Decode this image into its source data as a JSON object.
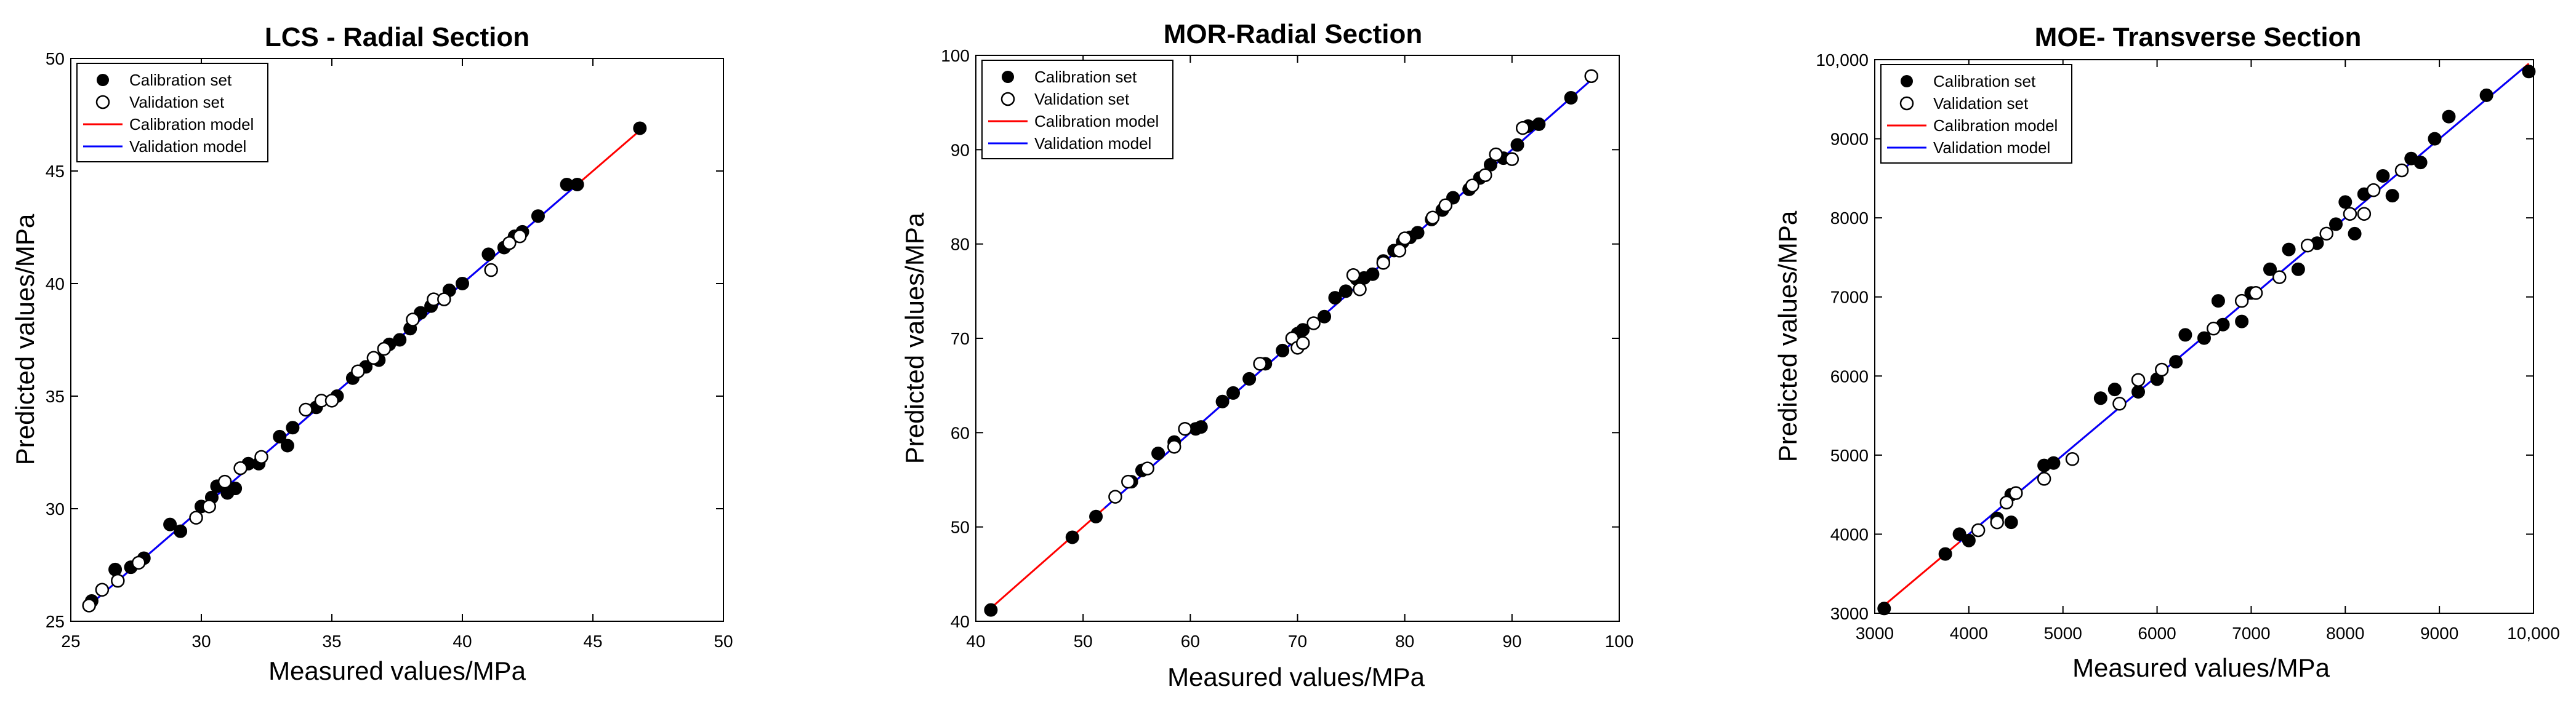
{
  "chart_data": [
    {
      "type": "scatter",
      "title": "LCS - Radial Section",
      "xlabel": "Measured values/MPa",
      "ylabel": "Predicted values/MPa",
      "xlim": [
        25,
        50
      ],
      "ylim": [
        25,
        50
      ],
      "xticks": [
        25,
        30,
        35,
        40,
        45,
        50
      ],
      "yticks": [
        25,
        30,
        35,
        40,
        45,
        50
      ],
      "xticklabels": [
        "25",
        "30",
        "35",
        "40",
        "45",
        "50"
      ],
      "yticklabels": [
        "25",
        "30",
        "35",
        "40",
        "45",
        "50"
      ],
      "legend": [
        "Calibration set",
        "Validation set",
        "Calibration model",
        "Validation model"
      ],
      "calibration_model": [
        [
          25.7,
          25.7
        ],
        [
          46.8,
          46.8
        ]
      ],
      "validation_model": [
        [
          25.7,
          25.7
        ],
        [
          44.3,
          44.3
        ]
      ],
      "series": [
        {
          "name": "Calibration set",
          "points": [
            [
              25.8,
              25.9
            ],
            [
              26.7,
              27.3
            ],
            [
              27.3,
              27.4
            ],
            [
              27.8,
              27.8
            ],
            [
              28.8,
              29.3
            ],
            [
              29.2,
              29.0
            ],
            [
              30.0,
              30.1
            ],
            [
              30.4,
              30.5
            ],
            [
              30.6,
              31.0
            ],
            [
              31.0,
              30.7
            ],
            [
              31.3,
              30.9
            ],
            [
              31.8,
              32.0
            ],
            [
              32.2,
              32.0
            ],
            [
              33.0,
              33.2
            ],
            [
              33.3,
              32.8
            ],
            [
              33.5,
              33.6
            ],
            [
              34.4,
              34.5
            ],
            [
              35.2,
              35.0
            ],
            [
              35.8,
              35.8
            ],
            [
              36.3,
              36.3
            ],
            [
              36.8,
              36.6
            ],
            [
              37.2,
              37.3
            ],
            [
              37.6,
              37.5
            ],
            [
              38.0,
              38.0
            ],
            [
              38.4,
              38.7
            ],
            [
              38.8,
              39.0
            ],
            [
              39.5,
              39.7
            ],
            [
              40.0,
              40.0
            ],
            [
              41.0,
              41.3
            ],
            [
              41.6,
              41.6
            ],
            [
              42.0,
              42.1
            ],
            [
              42.3,
              42.3
            ],
            [
              42.9,
              43.0
            ],
            [
              44.0,
              44.4
            ],
            [
              44.4,
              44.4
            ],
            [
              46.8,
              46.9
            ]
          ]
        },
        {
          "name": "Validation set",
          "points": [
            [
              25.7,
              25.7
            ],
            [
              26.2,
              26.4
            ],
            [
              26.8,
              26.8
            ],
            [
              27.6,
              27.6
            ],
            [
              29.8,
              29.6
            ],
            [
              30.3,
              30.1
            ],
            [
              30.9,
              31.2
            ],
            [
              31.5,
              31.8
            ],
            [
              32.3,
              32.3
            ],
            [
              34.0,
              34.4
            ],
            [
              34.6,
              34.8
            ],
            [
              35.0,
              34.8
            ],
            [
              36.0,
              36.1
            ],
            [
              36.6,
              36.7
            ],
            [
              37.0,
              37.1
            ],
            [
              38.1,
              38.4
            ],
            [
              38.9,
              39.3
            ],
            [
              39.3,
              39.3
            ],
            [
              41.1,
              40.6
            ],
            [
              41.8,
              41.8
            ],
            [
              42.2,
              42.1
            ]
          ]
        }
      ]
    },
    {
      "type": "scatter",
      "title": "MOR-Radial Section",
      "xlabel": "Measured values/MPa",
      "ylabel": "Predicted values/MPa",
      "xlim": [
        40,
        100
      ],
      "ylim": [
        40,
        100
      ],
      "xticks": [
        40,
        50,
        60,
        70,
        80,
        90,
        100
      ],
      "yticks": [
        40,
        50,
        60,
        70,
        80,
        90,
        100
      ],
      "xticklabels": [
        "40",
        "50",
        "60",
        "70",
        "80",
        "90",
        "100"
      ],
      "yticklabels": [
        "40",
        "50",
        "60",
        "70",
        "80",
        "90",
        "100"
      ],
      "legend": [
        "Calibration set",
        "Validation set",
        "Calibration model",
        "Validation model"
      ],
      "calibration_model": [
        [
          41.2,
          41.2
        ],
        [
          97.6,
          97.6
        ]
      ],
      "validation_model": [
        [
          52.0,
          52.0
        ],
        [
          97.6,
          97.6
        ]
      ],
      "series": [
        {
          "name": "Calibration set",
          "points": [
            [
              41.4,
              41.2
            ],
            [
              49.0,
              48.9
            ],
            [
              51.2,
              51.1
            ],
            [
              54.5,
              54.8
            ],
            [
              55.5,
              56.0
            ],
            [
              57.0,
              57.8
            ],
            [
              58.5,
              59.0
            ],
            [
              60.5,
              60.4
            ],
            [
              61.0,
              60.6
            ],
            [
              63.0,
              63.3
            ],
            [
              64.0,
              64.2
            ],
            [
              65.5,
              65.7
            ],
            [
              67.0,
              67.3
            ],
            [
              68.6,
              68.7
            ],
            [
              70.0,
              70.5
            ],
            [
              70.5,
              70.9
            ],
            [
              72.5,
              72.3
            ],
            [
              73.5,
              74.3
            ],
            [
              74.5,
              75.0
            ],
            [
              75.5,
              76.3
            ],
            [
              76.2,
              76.4
            ],
            [
              77.0,
              76.8
            ],
            [
              78.0,
              78.2
            ],
            [
              79.0,
              79.3
            ],
            [
              79.8,
              80.2
            ],
            [
              80.5,
              80.7
            ],
            [
              81.2,
              81.2
            ],
            [
              82.5,
              82.6
            ],
            [
              83.5,
              83.6
            ],
            [
              84.5,
              84.9
            ],
            [
              86.0,
              85.8
            ],
            [
              87.0,
              87.0
            ],
            [
              88.0,
              88.4
            ],
            [
              89.2,
              89.1
            ],
            [
              90.5,
              90.5
            ],
            [
              91.5,
              92.5
            ],
            [
              92.5,
              92.7
            ],
            [
              95.5,
              95.5
            ]
          ]
        },
        {
          "name": "Validation set",
          "points": [
            [
              53.0,
              53.2
            ],
            [
              54.2,
              54.8
            ],
            [
              56.0,
              56.2
            ],
            [
              58.5,
              58.5
            ],
            [
              59.5,
              60.4
            ],
            [
              66.5,
              67.3
            ],
            [
              69.5,
              70.0
            ],
            [
              70.0,
              69.0
            ],
            [
              70.5,
              69.5
            ],
            [
              71.5,
              71.6
            ],
            [
              75.2,
              76.7
            ],
            [
              75.8,
              75.2
            ],
            [
              78.0,
              78.0
            ],
            [
              79.5,
              79.3
            ],
            [
              80.0,
              80.6
            ],
            [
              82.6,
              82.8
            ],
            [
              83.8,
              84.1
            ],
            [
              86.3,
              86.2
            ],
            [
              87.5,
              87.3
            ],
            [
              88.5,
              89.5
            ],
            [
              90.0,
              89.0
            ],
            [
              91.0,
              92.3
            ],
            [
              97.4,
              97.8
            ]
          ]
        }
      ]
    },
    {
      "type": "scatter",
      "title": "MOE- Transverse Section",
      "xlabel": "Measured values/MPa",
      "ylabel": "Predicted values/MPa",
      "xlim": [
        3000,
        10000
      ],
      "ylim": [
        3000,
        10000
      ],
      "xticks": [
        3000,
        4000,
        5000,
        6000,
        7000,
        8000,
        9000,
        10000
      ],
      "yticks": [
        3000,
        4000,
        5000,
        6000,
        7000,
        8000,
        9000,
        10000
      ],
      "xticklabels": [
        "3000",
        "4000",
        "5000",
        "6000",
        "7000",
        "8000",
        "9000",
        "10,000"
      ],
      "yticklabels": [
        "3000",
        "4000",
        "5000",
        "6000",
        "7000",
        "8000",
        "9000",
        "10,000"
      ],
      "legend": [
        "Calibration set",
        "Validation set",
        "Calibration model",
        "Validation model"
      ],
      "calibration_model": [
        [
          3050,
          3050
        ],
        [
          9950,
          9950
        ]
      ],
      "validation_model": [
        [
          3900,
          3900
        ],
        [
          9900,
          9900
        ]
      ],
      "series": [
        {
          "name": "Calibration set",
          "points": [
            [
              3100,
              3060
            ],
            [
              3750,
              3750
            ],
            [
              3900,
              4000
            ],
            [
              4000,
              3920
            ],
            [
              4300,
              4200
            ],
            [
              4450,
              4500
            ],
            [
              4450,
              4150
            ],
            [
              4800,
              4870
            ],
            [
              4900,
              4900
            ],
            [
              5400,
              5720
            ],
            [
              5550,
              5830
            ],
            [
              5800,
              5800
            ],
            [
              6000,
              5960
            ],
            [
              6200,
              6180
            ],
            [
              6300,
              6520
            ],
            [
              6500,
              6480
            ],
            [
              6650,
              6950
            ],
            [
              6700,
              6650
            ],
            [
              6900,
              6690
            ],
            [
              7000,
              7050
            ],
            [
              7200,
              7350
            ],
            [
              7400,
              7600
            ],
            [
              7500,
              7350
            ],
            [
              7700,
              7680
            ],
            [
              7900,
              7920
            ],
            [
              8000,
              8200
            ],
            [
              8100,
              7800
            ],
            [
              8200,
              8300
            ],
            [
              8300,
              8350
            ],
            [
              8400,
              8530
            ],
            [
              8500,
              8280
            ],
            [
              8700,
              8750
            ],
            [
              8800,
              8700
            ],
            [
              8950,
              9000
            ],
            [
              9100,
              9280
            ],
            [
              9500,
              9550
            ],
            [
              9950,
              9850
            ]
          ]
        },
        {
          "name": "Validation set",
          "points": [
            [
              4100,
              4050
            ],
            [
              4300,
              4150
            ],
            [
              4400,
              4400
            ],
            [
              4500,
              4520
            ],
            [
              4800,
              4700
            ],
            [
              5100,
              4950
            ],
            [
              5600,
              5650
            ],
            [
              5800,
              5950
            ],
            [
              6050,
              6080
            ],
            [
              6600,
              6600
            ],
            [
              6900,
              6950
            ],
            [
              7050,
              7050
            ],
            [
              7300,
              7250
            ],
            [
              7600,
              7650
            ],
            [
              7800,
              7800
            ],
            [
              8050,
              8050
            ],
            [
              8200,
              8050
            ],
            [
              8300,
              8350
            ],
            [
              8600,
              8600
            ]
          ]
        }
      ]
    }
  ]
}
